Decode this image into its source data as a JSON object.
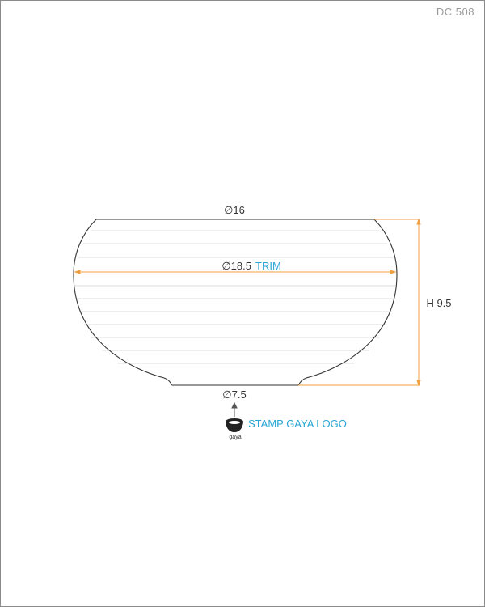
{
  "drawing_code": "DC 508",
  "dimensions": {
    "top_diameter": "∅16",
    "trim_diameter": "∅18.5",
    "trim_label": "TRIM",
    "bottom_diameter": "∅7.5",
    "height": "H 9.5"
  },
  "stamp": {
    "note": "STAMP GAYA LOGO",
    "logo_text": "gaya"
  },
  "colors": {
    "outline": "#333333",
    "dimension_line": "#f0a040",
    "note": "#2aa6d4",
    "stripes": "#d8d8d8"
  }
}
